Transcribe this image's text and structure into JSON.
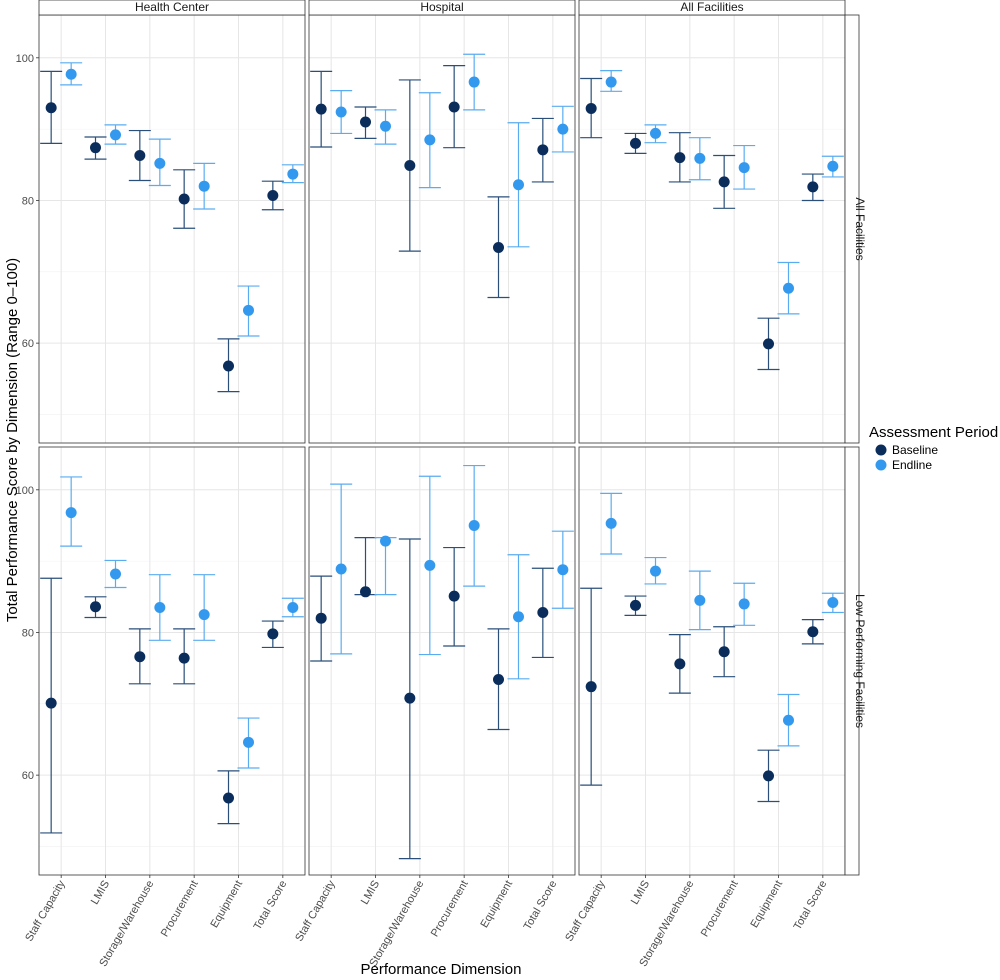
{
  "chart_data": {
    "type": "scatter",
    "subtype": "point-with-errorbars-faceted",
    "xlabel": "Performance Dimension",
    "ylabel": "Total Performance Score by Dimension (Range 0–100)",
    "categories": [
      "Staff Capacity",
      "LMIS",
      "Storage/Warehouse",
      "Procurement",
      "Equipment",
      "Total Score"
    ],
    "ylim": [
      46,
      106
    ],
    "yticks": [
      60,
      80,
      100
    ],
    "columns": [
      "Health Center",
      "Hospital",
      "All Facilities"
    ],
    "rows": [
      "All Facilities",
      "Low Performing Facilities"
    ],
    "legend": {
      "title": "Assessment Period",
      "position": "right",
      "entries": [
        {
          "name": "Baseline",
          "color": "#0b2d5b"
        },
        {
          "name": "Endline",
          "color": "#3399ee"
        }
      ]
    },
    "series_colors": {
      "Baseline": "#0b2d5b",
      "Endline": "#3399ee"
    },
    "error_colors": {
      "Baseline": "#2a4f7a",
      "Endline": "#5aacf0"
    },
    "grid": true,
    "panels": [
      {
        "column": "Health Center",
        "row": "All Facilities",
        "series": [
          {
            "name": "Baseline",
            "values": [
              93.0,
              87.4,
              86.3,
              80.2,
              56.8,
              80.7
            ],
            "lower": [
              88.0,
              85.8,
              82.8,
              76.1,
              53.2,
              78.7
            ],
            "upper": [
              98.1,
              88.9,
              89.8,
              84.3,
              60.6,
              82.7
            ]
          },
          {
            "name": "Endline",
            "values": [
              97.7,
              89.2,
              85.2,
              82.0,
              64.6,
              83.7
            ],
            "lower": [
              96.2,
              87.9,
              82.1,
              78.8,
              61.0,
              82.5
            ],
            "upper": [
              99.3,
              90.6,
              88.6,
              85.2,
              68.0,
              85.0
            ]
          }
        ]
      },
      {
        "column": "Hospital",
        "row": "All Facilities",
        "series": [
          {
            "name": "Baseline",
            "values": [
              92.8,
              91.0,
              84.9,
              93.1,
              73.4,
              87.1
            ],
            "lower": [
              87.5,
              88.7,
              72.9,
              87.4,
              66.4,
              82.6
            ],
            "upper": [
              98.1,
              93.1,
              96.9,
              98.9,
              80.5,
              91.5
            ]
          },
          {
            "name": "Endline",
            "values": [
              92.4,
              90.4,
              88.5,
              96.6,
              82.2,
              90.0
            ],
            "lower": [
              89.4,
              87.9,
              81.8,
              92.7,
              73.5,
              86.8
            ],
            "upper": [
              95.4,
              92.7,
              95.1,
              100.5,
              90.9,
              93.2
            ]
          }
        ]
      },
      {
        "column": "All Facilities",
        "row": "All Facilities",
        "series": [
          {
            "name": "Baseline",
            "values": [
              92.9,
              88.0,
              86.0,
              82.6,
              59.9,
              81.9
            ],
            "lower": [
              88.8,
              86.6,
              82.6,
              78.9,
              56.3,
              80.0
            ],
            "upper": [
              97.1,
              89.4,
              89.5,
              86.3,
              63.5,
              83.7
            ]
          },
          {
            "name": "Endline",
            "values": [
              96.6,
              89.4,
              85.9,
              84.6,
              67.7,
              84.8
            ],
            "lower": [
              95.3,
              88.1,
              82.9,
              81.6,
              64.1,
              83.3
            ],
            "upper": [
              98.2,
              90.6,
              88.8,
              87.7,
              71.3,
              86.2
            ]
          }
        ]
      },
      {
        "column": "Health Center",
        "row": "Low Performing Facilities",
        "series": [
          {
            "name": "Baseline",
            "values": [
              70.1,
              83.6,
              76.6,
              76.4,
              56.8,
              79.8
            ],
            "lower": [
              51.9,
              82.1,
              72.8,
              72.8,
              53.2,
              77.9
            ],
            "upper": [
              87.6,
              85.0,
              80.5,
              80.5,
              60.6,
              81.6
            ]
          },
          {
            "name": "Endline",
            "values": [
              96.8,
              88.2,
              83.5,
              82.5,
              64.6,
              83.5
            ],
            "lower": [
              92.1,
              86.3,
              78.9,
              78.9,
              61.0,
              82.2
            ],
            "upper": [
              101.8,
              90.1,
              88.1,
              88.1,
              68.0,
              84.8
            ]
          }
        ]
      },
      {
        "column": "Hospital",
        "row": "Low Performing Facilities",
        "series": [
          {
            "name": "Baseline",
            "values": [
              82.0,
              85.7,
              70.8,
              85.1,
              73.4,
              82.8
            ],
            "lower": [
              76.0,
              85.3,
              48.3,
              78.1,
              66.4,
              76.5
            ],
            "upper": [
              87.9,
              93.3,
              93.1,
              91.9,
              80.5,
              89.0
            ]
          },
          {
            "name": "Endline",
            "values": [
              88.9,
              92.8,
              89.4,
              95.0,
              82.2,
              88.8
            ],
            "lower": [
              77.0,
              85.3,
              76.9,
              86.5,
              73.5,
              83.4
            ],
            "upper": [
              100.8,
              93.3,
              101.9,
              103.4,
              90.9,
              94.2
            ]
          }
        ]
      },
      {
        "column": "All Facilities",
        "row": "Low Performing Facilities",
        "series": [
          {
            "name": "Baseline",
            "values": [
              72.4,
              83.8,
              75.6,
              77.3,
              59.9,
              80.1
            ],
            "lower": [
              58.6,
              82.4,
              71.5,
              73.8,
              56.3,
              78.4
            ],
            "upper": [
              86.2,
              85.1,
              79.7,
              80.8,
              63.5,
              81.8
            ]
          },
          {
            "name": "Endline",
            "values": [
              95.3,
              88.6,
              84.5,
              84.0,
              67.7,
              84.2
            ],
            "lower": [
              91.0,
              86.8,
              80.4,
              81.0,
              64.1,
              82.8
            ],
            "upper": [
              99.5,
              90.5,
              88.6,
              86.9,
              71.3,
              85.5
            ]
          }
        ]
      }
    ]
  }
}
